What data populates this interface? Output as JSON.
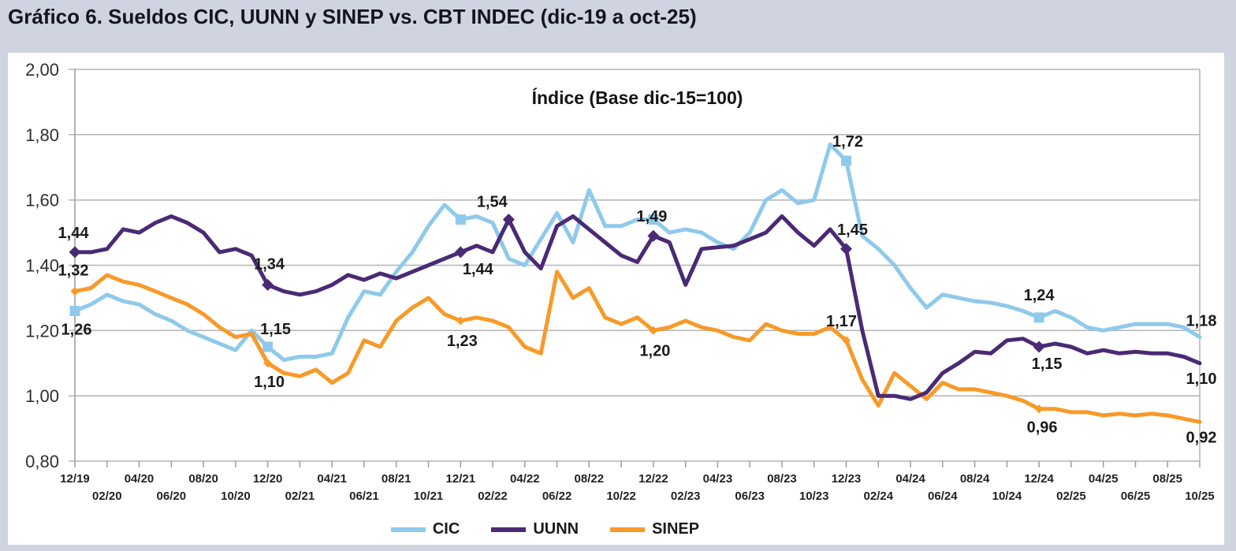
{
  "page": {
    "title": "Gráfico 6. Sueldos CIC, UUNN y SINEP vs. CBT INDEC (dic-19 a oct-25)"
  },
  "legend": {
    "items": [
      {
        "label": "CIC",
        "color": "#8fc9eb"
      },
      {
        "label": "UUNN",
        "color": "#4a2a74"
      },
      {
        "label": "SINEP",
        "color": "#f79a28"
      }
    ]
  },
  "colors": {
    "page_background": "#d0d4e0",
    "panel_background": "#ffffff",
    "gridline": "#b3b3b3",
    "axis": "#9c9c9c",
    "text": "#1a1a1a"
  },
  "chart_data": {
    "type": "line",
    "title": "Índice (Base dic-15=100)",
    "ylim": [
      0.8,
      2.0
    ],
    "y_ticks": [
      2.0,
      1.8,
      1.6,
      1.4,
      1.2,
      1.0,
      0.8
    ],
    "y_tick_labels": [
      "2,00",
      "1,80",
      "1,60",
      "1,40",
      "1,20",
      "1,00",
      "0,80"
    ],
    "grid": true,
    "legend_position": "bottom",
    "decimal_separator": ",",
    "x": [
      "12/19",
      "01/20",
      "02/20",
      "03/20",
      "04/20",
      "05/20",
      "06/20",
      "07/20",
      "08/20",
      "09/20",
      "10/20",
      "11/20",
      "12/20",
      "01/21",
      "02/21",
      "03/21",
      "04/21",
      "05/21",
      "06/21",
      "07/21",
      "08/21",
      "09/21",
      "10/21",
      "11/21",
      "12/21",
      "01/22",
      "02/22",
      "03/22",
      "04/22",
      "05/22",
      "06/22",
      "07/22",
      "08/22",
      "09/22",
      "10/22",
      "11/22",
      "12/22",
      "01/23",
      "02/23",
      "03/23",
      "04/23",
      "05/23",
      "06/23",
      "07/23",
      "08/23",
      "09/23",
      "10/23",
      "11/23",
      "12/23",
      "01/24",
      "02/24",
      "03/24",
      "04/24",
      "05/24",
      "06/24",
      "07/24",
      "08/24",
      "09/24",
      "10/24",
      "11/24",
      "12/24",
      "01/25",
      "02/25",
      "03/25",
      "04/25",
      "05/25",
      "06/25",
      "07/25",
      "08/25",
      "09/25",
      "10/25"
    ],
    "x_ticks_shown_every_months": 2,
    "series": [
      {
        "name": "CIC",
        "color": "#8fc9eb",
        "marker": "square",
        "marker_size": 13,
        "marker_indices": [
          0,
          12,
          24,
          36,
          48,
          60
        ],
        "values": [
          1.26,
          1.28,
          1.31,
          1.29,
          1.28,
          1.25,
          1.23,
          1.2,
          1.18,
          1.16,
          1.14,
          1.2,
          1.15,
          1.11,
          1.12,
          1.12,
          1.13,
          1.24,
          1.32,
          1.31,
          1.38,
          1.44,
          1.52,
          1.585,
          1.54,
          1.55,
          1.53,
          1.42,
          1.4,
          1.48,
          1.56,
          1.47,
          1.63,
          1.52,
          1.52,
          1.54,
          1.54,
          1.5,
          1.51,
          1.5,
          1.47,
          1.45,
          1.5,
          1.6,
          1.63,
          1.59,
          1.6,
          1.77,
          1.72,
          1.49,
          1.45,
          1.4,
          1.33,
          1.27,
          1.31,
          1.3,
          1.29,
          1.285,
          1.275,
          1.26,
          1.24,
          1.26,
          1.24,
          1.21,
          1.2,
          1.21,
          1.22,
          1.22,
          1.22,
          1.21,
          1.18
        ],
        "point_labels": [
          {
            "i": 0,
            "text": "1,26",
            "dx": 2,
            "dy": 30
          },
          {
            "i": 12,
            "text": "1,15",
            "dx": 10,
            "dy": -16
          },
          {
            "i": 24,
            "text": "1,54",
            "dx": 40,
            "dy": -16
          },
          {
            "i": 48,
            "text": "1,72",
            "dx": 2,
            "dy": -18
          },
          {
            "i": 60,
            "text": "1,24",
            "dx": 0,
            "dy": -22
          },
          {
            "i": 70,
            "text": "1,18",
            "dx": 2,
            "dy": -14
          }
        ]
      },
      {
        "name": "UUNN",
        "color": "#4a2a74",
        "marker": "diamond",
        "marker_size": 13,
        "marker_indices": [
          0,
          12,
          24,
          27,
          36,
          48,
          60
        ],
        "values": [
          1.44,
          1.44,
          1.45,
          1.51,
          1.5,
          1.53,
          1.55,
          1.53,
          1.5,
          1.44,
          1.45,
          1.43,
          1.34,
          1.32,
          1.31,
          1.32,
          1.34,
          1.37,
          1.355,
          1.375,
          1.36,
          1.38,
          1.4,
          1.42,
          1.44,
          1.46,
          1.44,
          1.54,
          1.44,
          1.39,
          1.52,
          1.55,
          1.51,
          1.47,
          1.43,
          1.41,
          1.49,
          1.47,
          1.34,
          1.45,
          1.455,
          1.46,
          1.48,
          1.5,
          1.55,
          1.5,
          1.46,
          1.51,
          1.45,
          1.2,
          1.0,
          1.0,
          0.99,
          1.01,
          1.07,
          1.1,
          1.135,
          1.13,
          1.17,
          1.175,
          1.15,
          1.16,
          1.15,
          1.13,
          1.14,
          1.13,
          1.135,
          1.13,
          1.13,
          1.12,
          1.1
        ],
        "point_labels": [
          {
            "i": 0,
            "text": "1,44",
            "dx": -2,
            "dy": -18
          },
          {
            "i": 12,
            "text": "1,34",
            "dx": 2,
            "dy": -20
          },
          {
            "i": 24,
            "text": "1,44",
            "dx": 22,
            "dy": 28
          },
          {
            "i": 36,
            "text": "1,49",
            "dx": -2,
            "dy": -18
          },
          {
            "i": 48,
            "text": "1,45",
            "dx": 8,
            "dy": -18
          },
          {
            "i": 60,
            "text": "1,15",
            "dx": 10,
            "dy": 28
          },
          {
            "i": 70,
            "text": "1,10",
            "dx": 2,
            "dy": 26
          }
        ]
      },
      {
        "name": "SINEP",
        "color": "#f79a28",
        "marker": "diamond",
        "marker_size": 9,
        "marker_indices": [
          0,
          12,
          24,
          36,
          48,
          60
        ],
        "values": [
          1.32,
          1.33,
          1.37,
          1.35,
          1.34,
          1.32,
          1.3,
          1.28,
          1.25,
          1.21,
          1.18,
          1.19,
          1.1,
          1.07,
          1.06,
          1.08,
          1.04,
          1.07,
          1.17,
          1.15,
          1.23,
          1.27,
          1.3,
          1.25,
          1.23,
          1.24,
          1.23,
          1.21,
          1.15,
          1.13,
          1.38,
          1.3,
          1.33,
          1.24,
          1.22,
          1.24,
          1.2,
          1.21,
          1.23,
          1.21,
          1.2,
          1.18,
          1.17,
          1.22,
          1.2,
          1.19,
          1.19,
          1.21,
          1.17,
          1.05,
          0.97,
          1.07,
          1.03,
          0.99,
          1.04,
          1.02,
          1.02,
          1.01,
          1.0,
          0.985,
          0.96,
          0.96,
          0.95,
          0.95,
          0.94,
          0.945,
          0.94,
          0.945,
          0.94,
          0.93,
          0.92
        ],
        "point_labels": [
          {
            "i": 0,
            "text": "1,32",
            "dx": -2,
            "dy": -20
          },
          {
            "i": 12,
            "text": "1,10",
            "dx": 2,
            "dy": 30
          },
          {
            "i": 24,
            "text": "1,23",
            "dx": 2,
            "dy": 32
          },
          {
            "i": 36,
            "text": "1,20",
            "dx": 2,
            "dy": 32
          },
          {
            "i": 48,
            "text": "1,17",
            "dx": -6,
            "dy": -18
          },
          {
            "i": 60,
            "text": "0,96",
            "dx": 4,
            "dy": 30
          },
          {
            "i": 70,
            "text": "0,92",
            "dx": 2,
            "dy": 26
          }
        ]
      }
    ]
  }
}
